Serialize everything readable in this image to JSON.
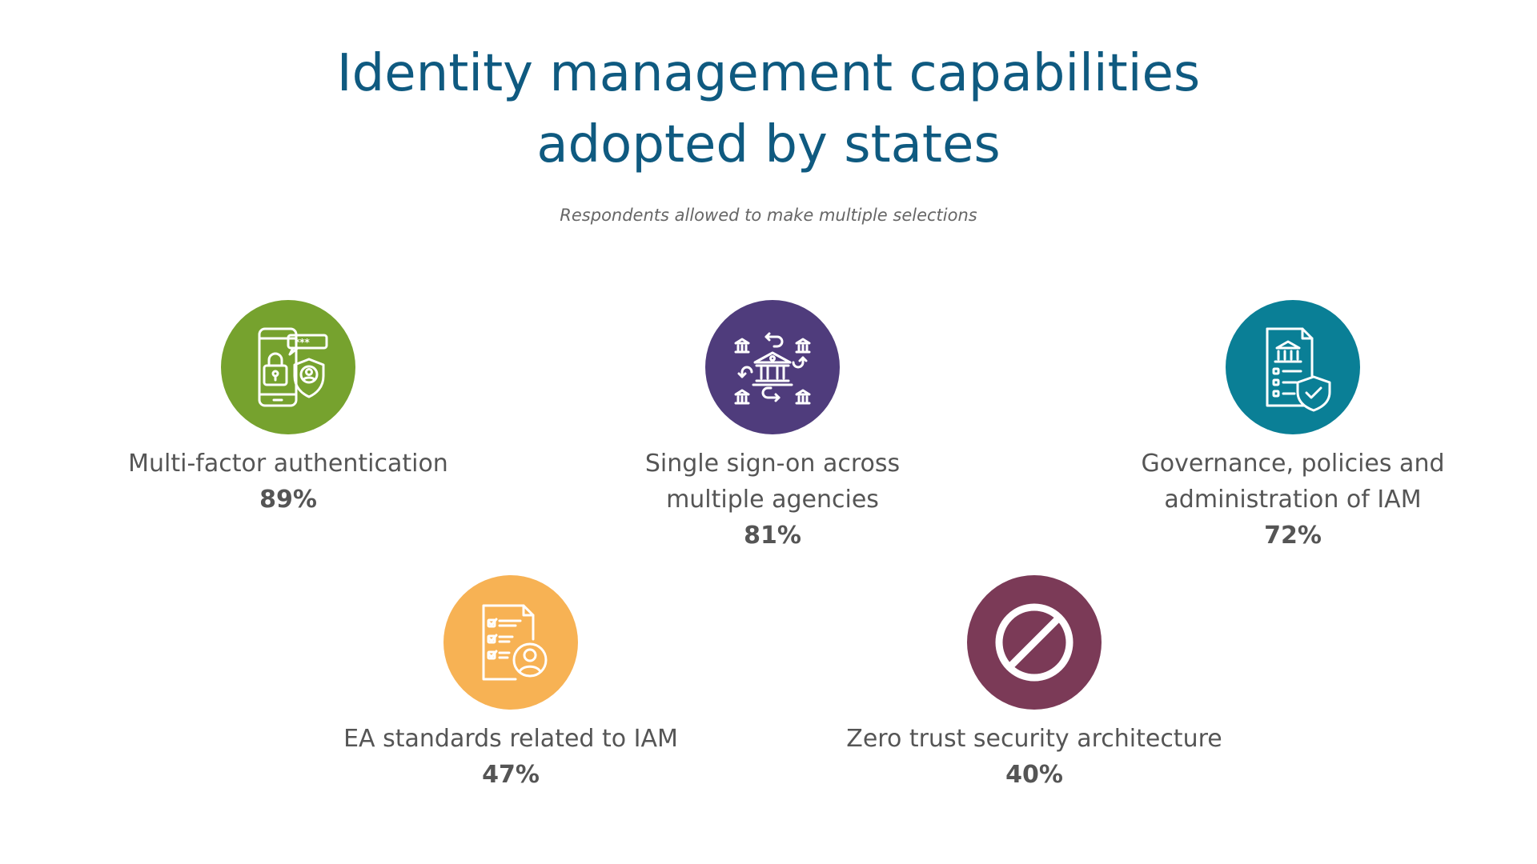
{
  "header": {
    "title_line1": "Identity management capabilities",
    "title_line2": "adopted by states",
    "subtitle": "Respondents allowed to make multiple selections"
  },
  "chart_data": {
    "type": "table",
    "categories": [
      "Multi-factor authentication",
      "Single sign-on across multiple agencies",
      "Governance, policies and administration of IAM",
      "EA standards related to IAM",
      "Zero trust security architecture"
    ],
    "values": [
      89,
      81,
      72,
      47,
      40
    ]
  },
  "items": [
    {
      "label_line1": "Multi-factor authentication",
      "label_line2": "",
      "percent": "89%",
      "icon": "phone-lock-shield-icon",
      "color": "#76a22e"
    },
    {
      "label_line1": "Single sign-on across",
      "label_line2": "multiple agencies",
      "percent": "81%",
      "icon": "bank-network-icon",
      "color": "#4f3c7c"
    },
    {
      "label_line1": "Governance, policies and",
      "label_line2": "administration of IAM",
      "percent": "72%",
      "icon": "policy-document-shield-icon",
      "color": "#0a7f96"
    },
    {
      "label_line1": "EA standards related to IAM",
      "label_line2": "",
      "percent": "47%",
      "icon": "checklist-user-icon",
      "color": "#f7b254"
    },
    {
      "label_line1": "Zero trust security architecture",
      "label_line2": "",
      "percent": "40%",
      "icon": "prohibited-icon",
      "color": "#7b3a57"
    }
  ]
}
